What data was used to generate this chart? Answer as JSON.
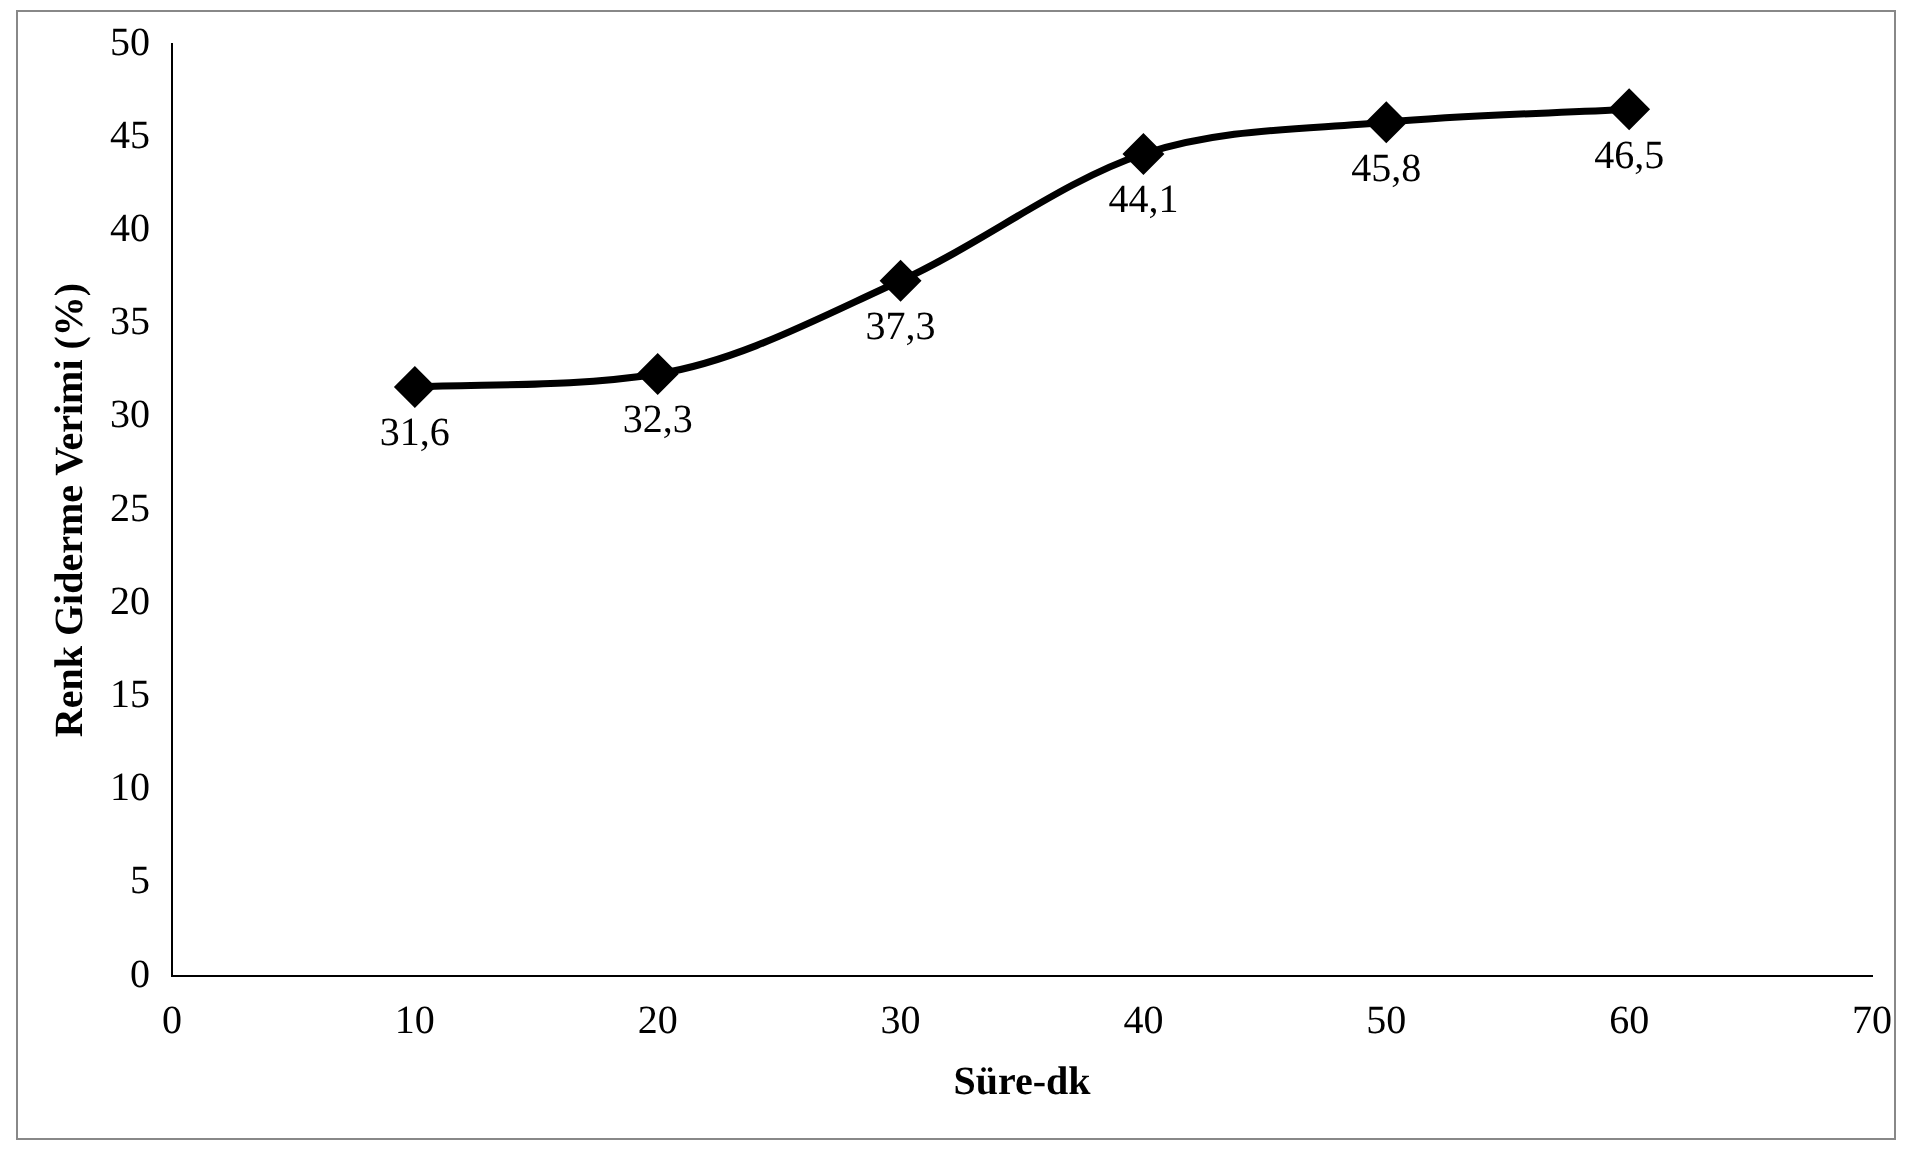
{
  "chart_data": {
    "type": "line",
    "xlabel": "Süre-dk",
    "ylabel": "Renk Giderme Verimi (%)",
    "x": [
      10,
      20,
      30,
      40,
      50,
      60
    ],
    "series": [
      {
        "color": "#000000",
        "values": [
          31.6,
          32.3,
          37.3,
          44.1,
          45.8,
          46.5
        ],
        "value_labels": [
          "31,6",
          "32,3",
          "37,3",
          "44,1",
          "45,8",
          "46,5"
        ]
      }
    ],
    "xlim": [
      0,
      70
    ],
    "xticks": [
      0,
      10,
      20,
      30,
      40,
      50,
      60,
      70
    ],
    "ylim": [
      0,
      50
    ],
    "yticks": [
      0,
      5,
      10,
      15,
      20,
      25,
      30,
      35,
      40,
      45,
      50
    ],
    "grid": false,
    "legend": false,
    "marker": "diamond",
    "line_style": "solid"
  }
}
